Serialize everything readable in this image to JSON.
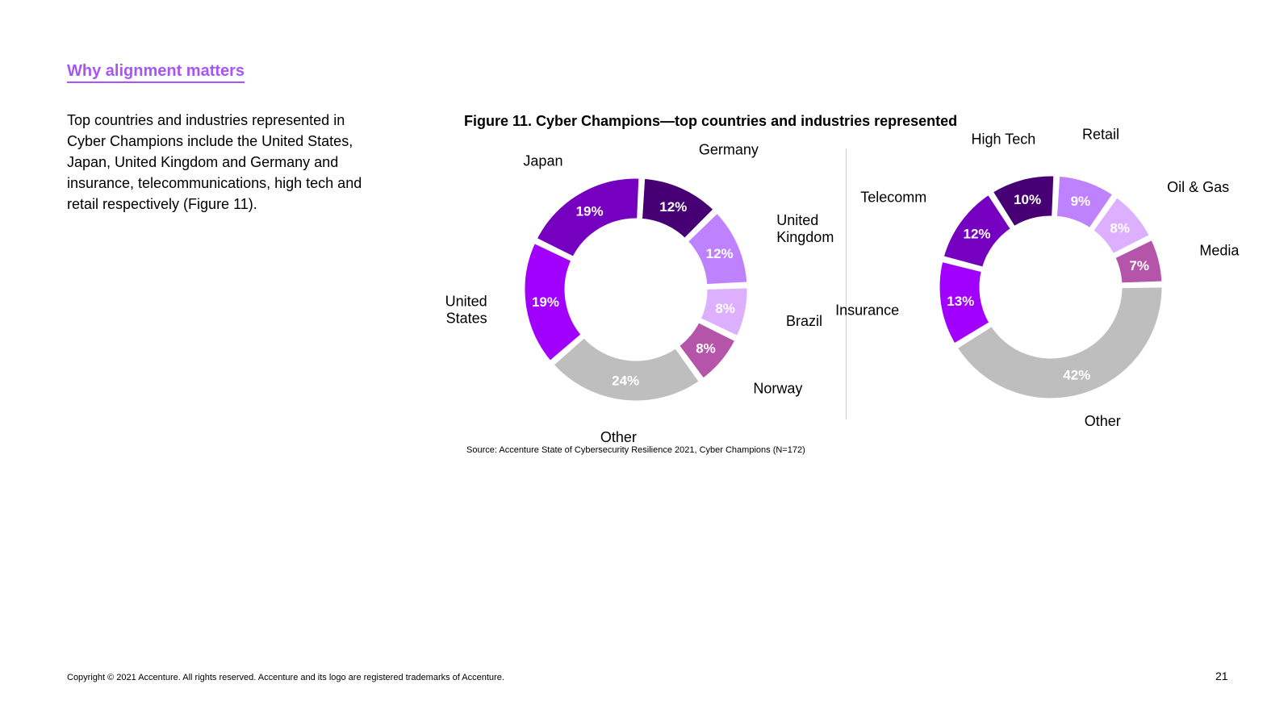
{
  "header": {
    "section_title": "Why alignment matters"
  },
  "intro_text": "Top countries and industries represented in Cyber Champions include the United States, Japan, United Kingdom and Germany and insurance, telecommunications, high tech and retail respectively (Figure 11).",
  "figure": {
    "title": "Figure 11. Cyber Champions—top countries and industries represented",
    "source": "Source: Accenture State of Cybersecurity Resilience 2021, Cyber Champions (N=172)"
  },
  "footer": {
    "copyright": "Copyright © 2021 Accenture. All rights reserved. Accenture and its logo are registered trademarks of Accenture.",
    "page_number": "21"
  },
  "chart_data": [
    {
      "type": "pie",
      "title": "",
      "categories": [
        "Germany",
        "United Kingdom",
        "Brazil",
        "Norway",
        "Other",
        "United States",
        "Japan"
      ],
      "values": [
        12,
        12,
        8,
        8,
        24,
        19,
        19
      ],
      "value_labels": [
        "12%",
        "12%",
        "8%",
        "8%",
        "24%",
        "19%",
        "19%"
      ],
      "label_lines": [
        [
          "Germany"
        ],
        [
          "United",
          "Kingdom"
        ],
        [
          "Brazil"
        ],
        [
          "Norway"
        ],
        [
          "Other"
        ],
        [
          "United",
          "States"
        ],
        [
          "Japan"
        ]
      ],
      "colors": [
        "#460073",
        "#be82ff",
        "#dcafff",
        "#b455aa",
        "#bebebe",
        "#a100ff",
        "#7500c0"
      ],
      "legend": "none"
    },
    {
      "type": "pie",
      "title": "",
      "categories": [
        "Retail",
        "Oil & Gas",
        "Media",
        "Other",
        "Insurance",
        "Telecomm",
        "High Tech"
      ],
      "values": [
        9,
        8,
        7,
        42,
        13,
        12,
        10
      ],
      "value_labels": [
        "9%",
        "8%",
        "7%",
        "42%",
        "13%",
        "12%",
        "10%"
      ],
      "label_lines": [
        [
          "Retail"
        ],
        [
          "Oil & Gas"
        ],
        [
          "Media"
        ],
        [
          "Other"
        ],
        [
          "Insurance"
        ],
        [
          "Telecomm"
        ],
        [
          "High Tech"
        ]
      ],
      "colors": [
        "#be82ff",
        "#dcafff",
        "#b455aa",
        "#bebebe",
        "#a100ff",
        "#7500c0",
        "#460073"
      ],
      "legend": "none"
    }
  ]
}
